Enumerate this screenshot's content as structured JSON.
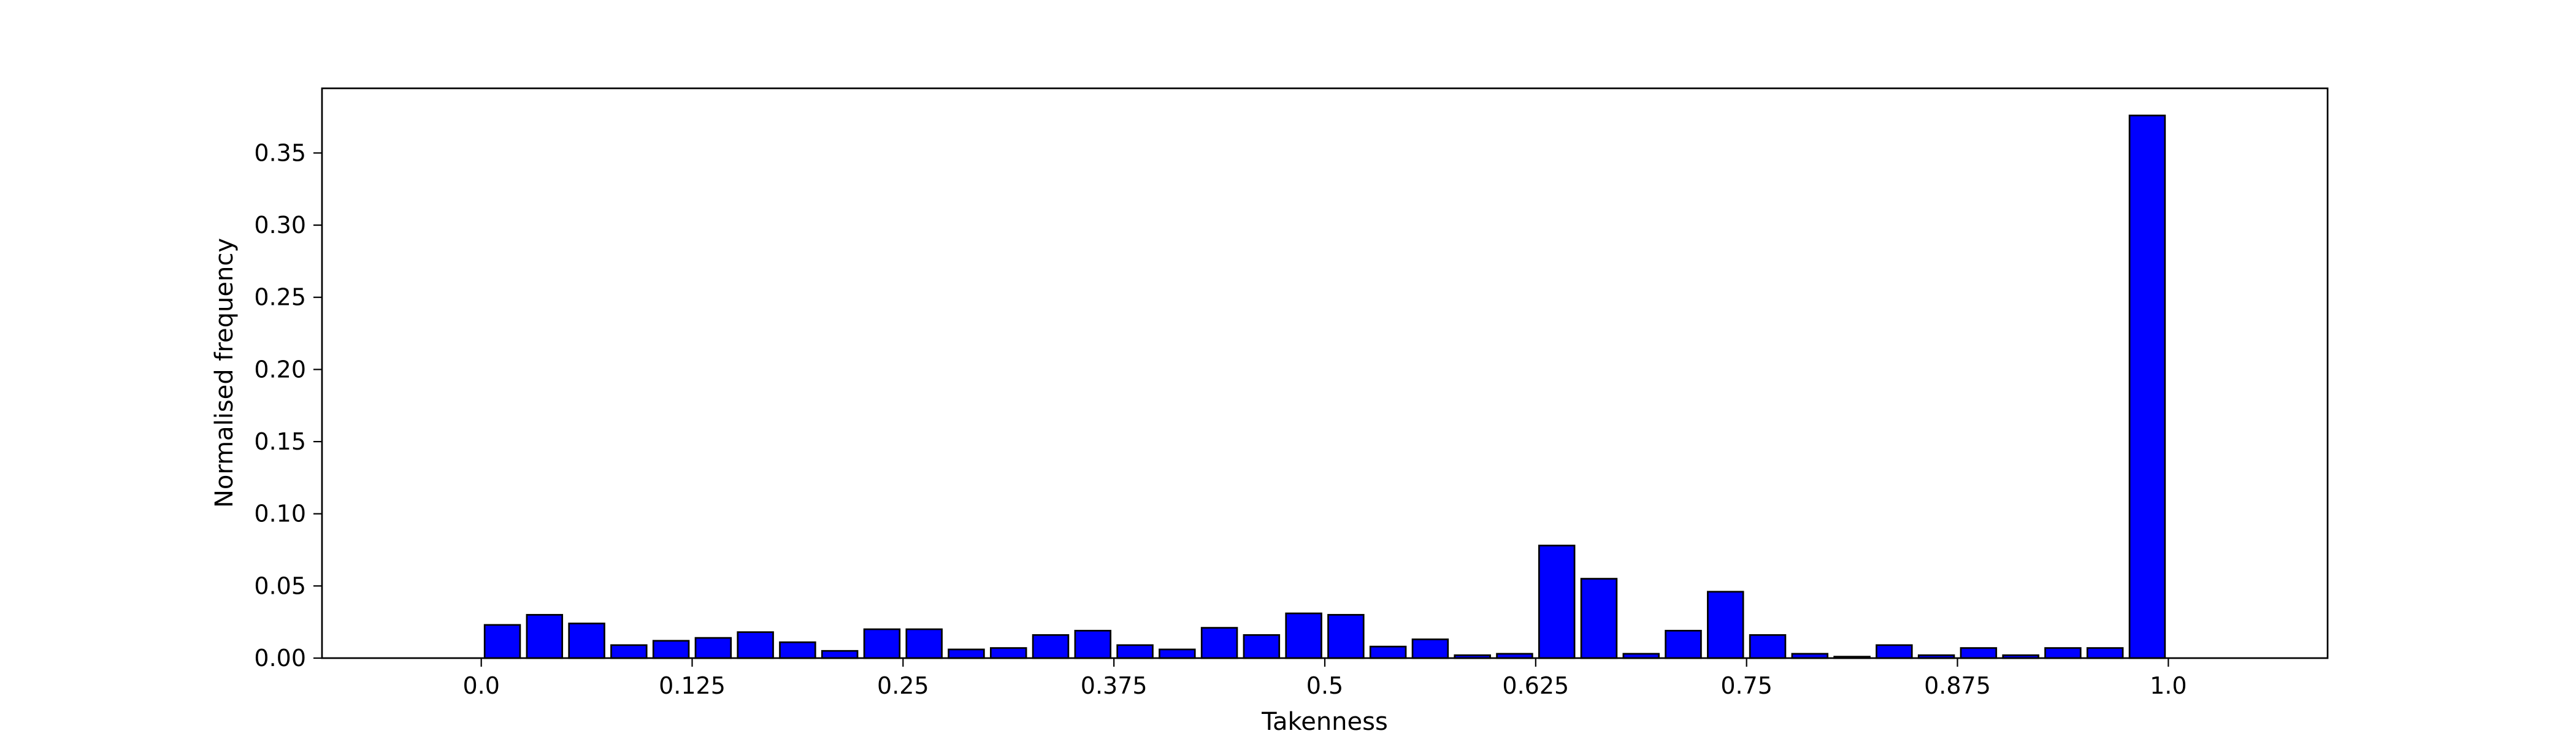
{
  "chart_data": {
    "type": "bar",
    "title": "",
    "xlabel": "Takenness",
    "ylabel": "Normalised frequency",
    "xlim": [
      -0.0944,
      1.0944
    ],
    "ylim": [
      0,
      0.3948
    ],
    "bar_width_data": 0.021,
    "bar_color": "#0000ff",
    "edge_color": "#000000",
    "grid": false,
    "legend": null,
    "x_ticks": [
      {
        "value": 0.0,
        "label": "0.0"
      },
      {
        "value": 0.125,
        "label": "0.125"
      },
      {
        "value": 0.25,
        "label": "0.25"
      },
      {
        "value": 0.375,
        "label": "0.375"
      },
      {
        "value": 0.5,
        "label": "0.5"
      },
      {
        "value": 0.625,
        "label": "0.625"
      },
      {
        "value": 0.75,
        "label": "0.75"
      },
      {
        "value": 0.875,
        "label": "0.875"
      },
      {
        "value": 1.0,
        "label": "1.0"
      }
    ],
    "y_ticks": [
      {
        "value": 0.0,
        "label": "0.00"
      },
      {
        "value": 0.05,
        "label": "0.05"
      },
      {
        "value": 0.1,
        "label": "0.10"
      },
      {
        "value": 0.15,
        "label": "0.15"
      },
      {
        "value": 0.2,
        "label": "0.20"
      },
      {
        "value": 0.25,
        "label": "0.25"
      },
      {
        "value": 0.3,
        "label": "0.30"
      },
      {
        "value": 0.35,
        "label": "0.35"
      }
    ],
    "x": [
      0.0125,
      0.0375,
      0.0625,
      0.0875,
      0.1125,
      0.1375,
      0.1625,
      0.1875,
      0.2125,
      0.2375,
      0.2625,
      0.2875,
      0.3125,
      0.3375,
      0.3625,
      0.3875,
      0.4125,
      0.4375,
      0.4625,
      0.4875,
      0.5125,
      0.5375,
      0.5625,
      0.5875,
      0.6125,
      0.6375,
      0.6625,
      0.6875,
      0.7125,
      0.7375,
      0.7625,
      0.7875,
      0.8125,
      0.8375,
      0.8625,
      0.8875,
      0.9125,
      0.9375,
      0.9625,
      0.9875
    ],
    "values": [
      0.023,
      0.03,
      0.024,
      0.009,
      0.012,
      0.014,
      0.018,
      0.011,
      0.005,
      0.02,
      0.02,
      0.006,
      0.007,
      0.016,
      0.019,
      0.009,
      0.006,
      0.021,
      0.016,
      0.031,
      0.03,
      0.008,
      0.013,
      0.002,
      0.003,
      0.078,
      0.055,
      0.003,
      0.019,
      0.046,
      0.016,
      0.003,
      0.001,
      0.009,
      0.002,
      0.007,
      0.002,
      0.007,
      0.007,
      0.376
    ]
  }
}
